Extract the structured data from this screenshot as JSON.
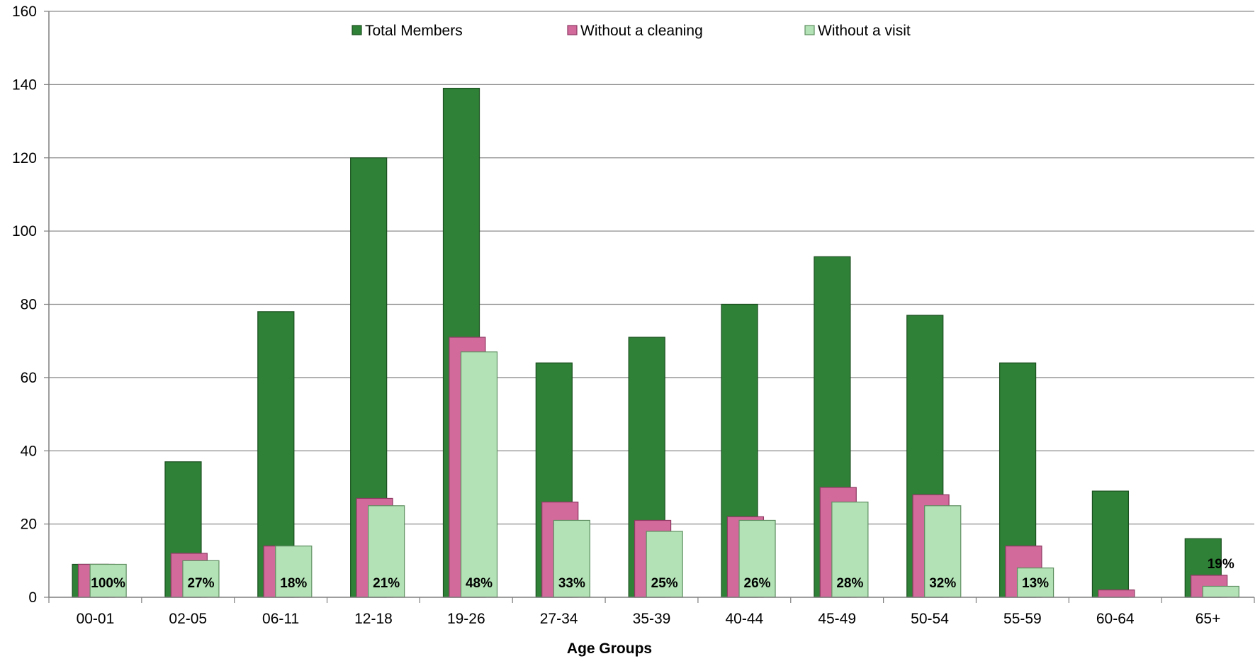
{
  "chart_data": {
    "type": "bar",
    "xlabel": "Age Groups",
    "ylabel": "",
    "ylim": [
      0,
      160
    ],
    "yticks": [
      0,
      20,
      40,
      60,
      80,
      100,
      120,
      140,
      160
    ],
    "grid": true,
    "legend_position": "top-center",
    "categories": [
      "00-01",
      "02-05",
      "06-11",
      "12-18",
      "19-26",
      "27-34",
      "35-39",
      "40-44",
      "45-49",
      "50-54",
      "55-59",
      "60-64",
      "65+"
    ],
    "series": [
      {
        "name": "Total Members",
        "color": "#2e8136",
        "values": [
          9,
          37,
          78,
          120,
          139,
          64,
          71,
          80,
          93,
          77,
          64,
          29,
          16
        ]
      },
      {
        "name": "Without a cleaning",
        "color": "#d26a9b",
        "values": [
          9,
          12,
          14,
          27,
          71,
          26,
          21,
          22,
          30,
          28,
          14,
          2,
          6
        ]
      },
      {
        "name": "Without a visit",
        "color": "#b2e2b5",
        "values": [
          9,
          10,
          14,
          25,
          67,
          21,
          18,
          21,
          26,
          25,
          8,
          0,
          3
        ]
      }
    ],
    "data_labels": [
      "100%",
      "27%",
      "18%",
      "21%",
      "48%",
      "33%",
      "25%",
      "26%",
      "28%",
      "32%",
      "13%",
      "",
      "19%"
    ]
  }
}
